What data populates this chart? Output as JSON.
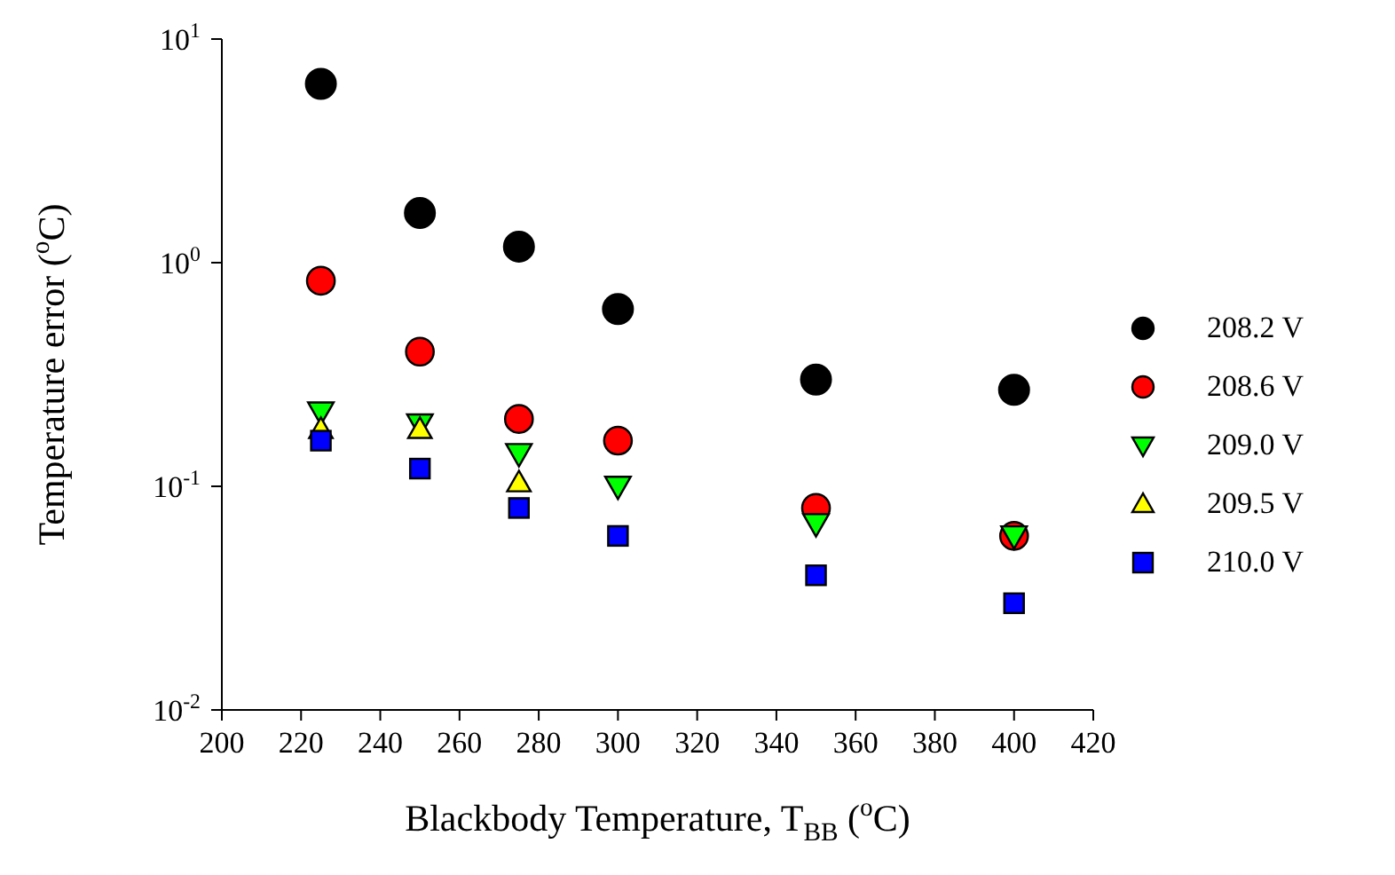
{
  "chart_data": {
    "type": "scatter",
    "xlabel": "Blackbody Temperature, T$_{BB}$ ($^{o}$C)",
    "ylabel": "Temperature error ($^{o}$C)",
    "x": [
      225,
      250,
      275,
      300,
      350,
      400
    ],
    "series": [
      {
        "name": "208.2 V",
        "color": "#000000",
        "marker": "circle",
        "values": [
          6.3,
          1.67,
          1.18,
          0.62,
          0.3,
          0.27
        ]
      },
      {
        "name": "208.6 V",
        "color": "#ff0000",
        "marker": "circle",
        "values": [
          0.83,
          0.4,
          0.2,
          0.16,
          0.08,
          0.06
        ]
      },
      {
        "name": "209.0 V",
        "color": "#00ff00",
        "marker": "triangle-down",
        "values": [
          0.215,
          0.19,
          0.14,
          0.1,
          0.068,
          0.06
        ]
      },
      {
        "name": "209.5 V",
        "color": "#ffff00",
        "marker": "triangle",
        "values": [
          0.18,
          0.18,
          0.104,
          null,
          null,
          null
        ]
      },
      {
        "name": "210.0 V",
        "color": "#0000ff",
        "marker": "square",
        "values": [
          0.16,
          0.12,
          0.08,
          0.06,
          0.04,
          0.03
        ]
      }
    ],
    "log": "y",
    "xlim": [
      200,
      420
    ],
    "xticks": [
      200,
      220,
      240,
      260,
      280,
      300,
      320,
      340,
      360,
      380,
      400,
      420
    ],
    "ylim": [
      0.01,
      10
    ],
    "yticks": [
      {
        "value": 0.01,
        "label": "10$^{-2}$"
      },
      {
        "value": 0.1,
        "label": "10$^{-1}$"
      },
      {
        "value": 1,
        "label": "10$^{0}$"
      },
      {
        "value": 10,
        "label": "10$^{1}$"
      }
    ],
    "legend": "right",
    "grid": false
  }
}
